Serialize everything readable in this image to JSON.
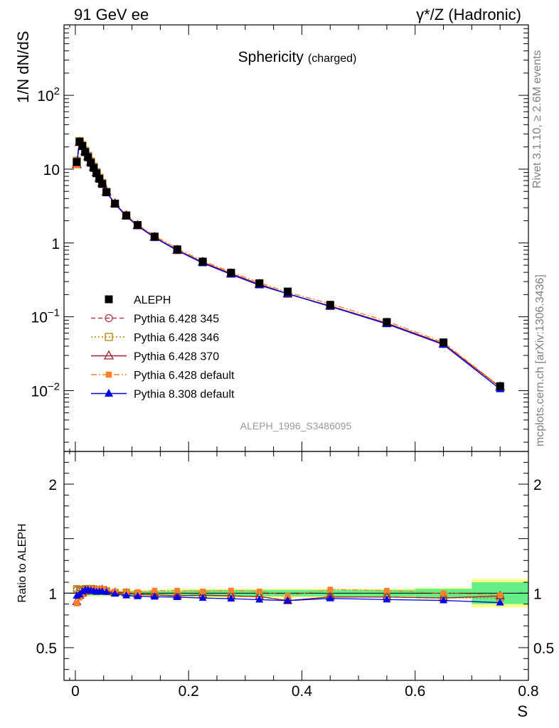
{
  "header": {
    "left": "91 GeV ee",
    "right": "γ*/Z (Hadronic)"
  },
  "side_labels": {
    "rivet": "Rivet 3.1.10, ≥ 2.6M events",
    "mcplots": "mcplots.cern.ch [arXiv:1306.3436]"
  },
  "chart_data": {
    "type": "scatter",
    "title": "Sphericity",
    "title_sub": "(charged)",
    "analysis_tag": "ALEPH_1996_S3486095",
    "xlabel": "S",
    "ylabel": "1/N dN/dS",
    "ratio_ylabel": "Ratio to ALEPH",
    "xlim": [
      -0.02,
      0.8
    ],
    "ylim": [
      0.0015,
      900
    ],
    "ylog": true,
    "ratio_ylim": [
      0.2,
      2.3
    ],
    "x_ticks": [
      "0",
      "0.2",
      "0.4",
      "0.6",
      "0.8"
    ],
    "y_ticks": [
      "10⁻²",
      "10⁻¹",
      "1",
      "10",
      "10²"
    ],
    "ratio_ticks": [
      "0.5",
      "1",
      "2"
    ],
    "legend_position": "lower-left",
    "x": [
      0.0025,
      0.0075,
      0.0125,
      0.0175,
      0.0225,
      0.0275,
      0.0325,
      0.0375,
      0.0425,
      0.0475,
      0.055,
      0.07,
      0.09,
      0.11,
      0.14,
      0.18,
      0.225,
      0.275,
      0.325,
      0.375,
      0.45,
      0.55,
      0.65,
      0.75
    ],
    "series": [
      {
        "name": "ALEPH",
        "color": "#000000",
        "marker": "square",
        "line": "none",
        "values": [
          12.5,
          23.5,
          20.5,
          17.0,
          14.5,
          12.2,
          10.4,
          8.8,
          7.4,
          6.3,
          4.85,
          3.4,
          2.35,
          1.75,
          1.22,
          0.82,
          0.56,
          0.395,
          0.285,
          0.22,
          0.145,
          0.085,
          0.045,
          0.0115
        ]
      },
      {
        "name": "Pythia 6.428 345",
        "color": "#b03a48",
        "marker": "open-circle",
        "line": "dashed",
        "values": [
          12.9,
          23.9,
          21.1,
          17.6,
          15.0,
          12.6,
          10.7,
          9.0,
          7.6,
          6.5,
          4.95,
          3.42,
          2.37,
          1.74,
          1.2,
          0.8,
          0.55,
          0.385,
          0.276,
          0.205,
          0.14,
          0.082,
          0.043,
          0.0112
        ]
      },
      {
        "name": "Pythia 6.428 346",
        "color": "#b8860b",
        "marker": "open-square",
        "line": "dotted",
        "values": [
          13.0,
          24.0,
          21.2,
          17.7,
          15.1,
          12.7,
          10.8,
          9.1,
          7.65,
          6.5,
          4.95,
          3.42,
          2.37,
          1.74,
          1.2,
          0.8,
          0.55,
          0.385,
          0.276,
          0.205,
          0.14,
          0.082,
          0.043,
          0.011
        ]
      },
      {
        "name": "Pythia 6.428 370",
        "color": "#a02030",
        "marker": "open-triangle",
        "line": "solid",
        "values": [
          11.5,
          23.0,
          20.5,
          17.3,
          14.8,
          12.5,
          10.7,
          9.0,
          7.6,
          6.5,
          4.95,
          3.42,
          2.35,
          1.73,
          1.2,
          0.8,
          0.55,
          0.385,
          0.276,
          0.205,
          0.14,
          0.082,
          0.043,
          0.0112
        ]
      },
      {
        "name": "Pythia 6.428 default",
        "color": "#ff7f2a",
        "marker": "filled-square",
        "line": "dashdot",
        "values": [
          11.3,
          22.5,
          20.2,
          17.4,
          14.9,
          12.7,
          10.8,
          9.1,
          7.7,
          6.55,
          5.0,
          3.45,
          2.38,
          1.77,
          1.25,
          0.84,
          0.57,
          0.405,
          0.29,
          0.215,
          0.15,
          0.087,
          0.045,
          0.0113
        ]
      },
      {
        "name": "Pythia 8.308 default",
        "color": "#0000e6",
        "marker": "filled-triangle",
        "line": "solid",
        "values": [
          12.2,
          23.2,
          20.8,
          17.5,
          14.9,
          12.5,
          10.6,
          8.9,
          7.5,
          6.4,
          4.9,
          3.38,
          2.3,
          1.7,
          1.18,
          0.79,
          0.535,
          0.375,
          0.268,
          0.205,
          0.138,
          0.08,
          0.042,
          0.0105
        ]
      }
    ],
    "ratio_band": {
      "x_edges": [
        0.0,
        0.005,
        0.01,
        0.015,
        0.02,
        0.025,
        0.03,
        0.035,
        0.04,
        0.045,
        0.05,
        0.06,
        0.08,
        0.1,
        0.12,
        0.16,
        0.2,
        0.25,
        0.3,
        0.35,
        0.4,
        0.5,
        0.6,
        0.7,
        0.8
      ],
      "inner": [
        0.03,
        0.02,
        0.02,
        0.02,
        0.02,
        0.02,
        0.02,
        0.02,
        0.02,
        0.02,
        0.02,
        0.02,
        0.02,
        0.02,
        0.02,
        0.02,
        0.03,
        0.03,
        0.03,
        0.03,
        0.03,
        0.03,
        0.04,
        0.1
      ],
      "outer": [
        0.04,
        0.03,
        0.03,
        0.03,
        0.03,
        0.03,
        0.03,
        0.03,
        0.03,
        0.03,
        0.03,
        0.03,
        0.03,
        0.03,
        0.03,
        0.04,
        0.04,
        0.04,
        0.04,
        0.04,
        0.04,
        0.04,
        0.05,
        0.13
      ]
    }
  }
}
